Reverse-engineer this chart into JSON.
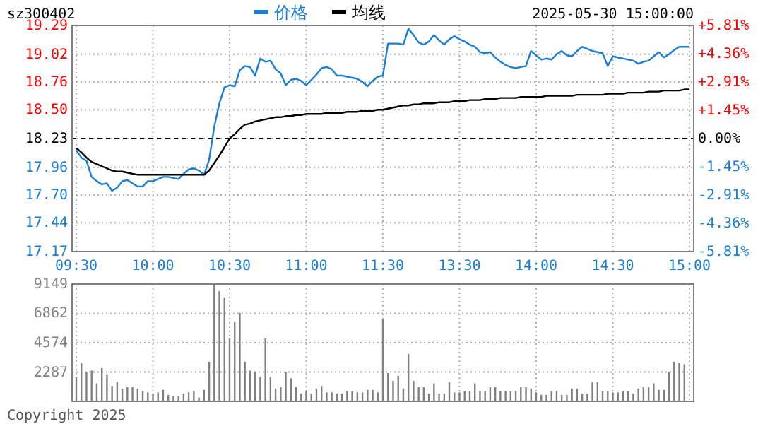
{
  "chart_data": [
    {
      "type": "line",
      "title": "sz300402",
      "subtitle": "2025-05-30 15:00:00",
      "legend": "top",
      "grid": true,
      "categories": [
        "09:30",
        null,
        null,
        null,
        null,
        null,
        null,
        null,
        null,
        null,
        null,
        null,
        null,
        null,
        null,
        "10:00",
        null,
        null,
        null,
        null,
        null,
        null,
        null,
        null,
        null,
        null,
        null,
        null,
        null,
        null,
        "10:30",
        null,
        null,
        null,
        null,
        null,
        null,
        null,
        null,
        null,
        null,
        null,
        null,
        null,
        null,
        "11:00",
        null,
        null,
        null,
        null,
        null,
        null,
        null,
        null,
        null,
        null,
        null,
        null,
        null,
        null,
        "11:30",
        null,
        null,
        null,
        null,
        null,
        null,
        null,
        null,
        null,
        null,
        null,
        null,
        null,
        null,
        "13:30",
        null,
        null,
        null,
        null,
        null,
        null,
        null,
        null,
        null,
        null,
        null,
        null,
        null,
        null,
        "14:00",
        null,
        null,
        null,
        null,
        null,
        null,
        null,
        null,
        null,
        null,
        null,
        null,
        null,
        null,
        "14:30",
        null,
        null,
        null,
        null,
        null,
        null,
        null,
        null,
        null,
        null,
        null,
        null,
        null,
        null,
        "15:00"
      ],
      "ylim": [
        17.17,
        19.29
      ],
      "yticks": [
        17.17,
        17.44,
        {
          "value": 17.7,
          "label": "17.70"
        },
        17.96,
        18.23,
        {
          "value": 18.5,
          "label": "18.50"
        },
        18.76,
        19.02,
        19.29
      ],
      "y2lim": [
        -5.81,
        5.81
      ],
      "y2ticks": [
        {
          "value": -5.81,
          "label": "-5.81%"
        },
        {
          "value": -4.36,
          "label": "-4.36%"
        },
        {
          "value": -2.91,
          "label": "-2.91%"
        },
        {
          "value": -1.45,
          "label": "-1.45%"
        },
        {
          "value": 0,
          "label": "0.00%"
        },
        {
          "value": 1.45,
          "label": "+1.45%"
        },
        {
          "value": 2.91,
          "label": "+2.91%"
        },
        {
          "value": 4.36,
          "label": "+4.36%"
        },
        {
          "value": 5.81,
          "label": "+5.81%"
        }
      ],
      "ref_lines": [
        {
          "axis": "y",
          "value": 18.23,
          "color": "#000000",
          "line_style": "dashed"
        }
      ],
      "series": [
        {
          "name": "价格",
          "color": "#1a7fd4",
          "values": [
            18.12,
            18.05,
            18.02,
            17.87,
            17.83,
            17.8,
            17.81,
            17.74,
            17.77,
            17.83,
            17.84,
            17.81,
            17.78,
            17.78,
            17.83,
            17.83,
            17.85,
            17.87,
            17.87,
            17.86,
            17.85,
            17.9,
            17.94,
            17.95,
            17.93,
            17.89,
            18.03,
            18.34,
            18.56,
            18.71,
            18.73,
            18.72,
            18.87,
            18.91,
            18.9,
            18.82,
            18.98,
            18.95,
            18.96,
            18.88,
            18.84,
            18.73,
            18.78,
            18.79,
            18.77,
            18.73,
            18.78,
            18.83,
            18.89,
            18.9,
            18.88,
            18.82,
            18.82,
            18.81,
            18.8,
            18.79,
            18.76,
            18.72,
            18.77,
            18.81,
            18.82,
            19.12,
            19.12,
            19.12,
            19.11,
            19.26,
            19.2,
            19.13,
            19.11,
            19.14,
            19.2,
            19.15,
            19.11,
            19.16,
            19.19,
            19.16,
            19.14,
            19.11,
            19.09,
            19.04,
            19.03,
            19.04,
            18.99,
            18.95,
            18.92,
            18.9,
            18.89,
            18.9,
            18.91,
            19.05,
            19.01,
            18.97,
            18.98,
            18.97,
            19.02,
            19.05,
            19.01,
            19.0,
            19.05,
            19.09,
            19.07,
            19.05,
            19.04,
            19.03,
            18.91,
            19.0,
            18.99,
            18.98,
            18.97,
            18.96,
            18.93,
            18.95,
            18.96,
            19.0,
            19.04,
            18.99,
            19.02,
            19.06,
            19.09,
            19.09,
            19.09
          ]
        },
        {
          "name": "均线",
          "color": "#000000",
          "values": [
            18.14,
            18.1,
            18.05,
            18.01,
            17.99,
            17.97,
            17.95,
            17.93,
            17.92,
            17.92,
            17.91,
            17.9,
            17.89,
            17.89,
            17.89,
            17.89,
            17.89,
            17.89,
            17.89,
            17.89,
            17.89,
            17.89,
            17.89,
            17.89,
            17.89,
            17.89,
            17.93,
            18.0,
            18.07,
            18.15,
            18.23,
            18.27,
            18.32,
            18.36,
            18.37,
            18.39,
            18.4,
            18.41,
            18.42,
            18.43,
            18.43,
            18.44,
            18.44,
            18.45,
            18.45,
            18.46,
            18.46,
            18.46,
            18.46,
            18.47,
            18.47,
            18.47,
            18.47,
            18.48,
            18.48,
            18.48,
            18.49,
            18.49,
            18.49,
            18.5,
            18.5,
            18.51,
            18.52,
            18.53,
            18.54,
            18.54,
            18.55,
            18.55,
            18.56,
            18.56,
            18.56,
            18.57,
            18.57,
            18.57,
            18.58,
            18.58,
            18.58,
            18.59,
            18.59,
            18.59,
            18.6,
            18.6,
            18.6,
            18.61,
            18.61,
            18.61,
            18.61,
            18.62,
            18.62,
            18.62,
            18.62,
            18.62,
            18.63,
            18.63,
            18.63,
            18.63,
            18.63,
            18.63,
            18.64,
            18.64,
            18.64,
            18.64,
            18.64,
            18.64,
            18.65,
            18.65,
            18.65,
            18.65,
            18.66,
            18.66,
            18.66,
            18.66,
            18.67,
            18.67,
            18.67,
            18.68,
            18.68,
            18.68,
            18.68,
            18.69,
            18.69
          ]
        }
      ]
    },
    {
      "type": "bar",
      "tick_labels": "y",
      "grid": true,
      "categories": [
        null,
        null,
        null,
        null,
        null,
        null,
        null,
        null,
        null,
        null,
        null,
        null,
        null,
        null,
        null,
        null,
        null,
        null,
        null,
        null,
        null,
        null,
        null,
        null,
        null,
        null,
        null,
        null,
        null,
        null,
        null,
        null,
        null,
        null,
        null,
        null,
        null,
        null,
        null,
        null,
        null,
        null,
        null,
        null,
        null,
        null,
        null,
        null,
        null,
        null,
        null,
        null,
        null,
        null,
        null,
        null,
        null,
        null,
        null,
        null,
        null,
        null,
        null,
        null,
        null,
        null,
        null,
        null,
        null,
        null,
        null,
        null,
        null,
        null,
        null,
        null,
        null,
        null,
        null,
        null,
        null,
        null,
        null,
        null,
        null,
        null,
        null,
        null,
        null,
        null,
        null,
        null,
        null,
        null,
        null,
        null,
        null,
        null,
        null,
        null,
        null,
        null,
        null,
        null,
        null,
        null,
        null,
        null,
        null,
        null,
        null,
        null,
        null,
        null,
        null,
        null,
        null,
        null,
        null,
        null,
        null
      ],
      "ylim": [
        0,
        9149
      ],
      "yticks": [
        2287,
        4574,
        6862,
        9149
      ],
      "color": "#808080",
      "values": [
        1900,
        3000,
        2300,
        2400,
        1400,
        2600,
        2100,
        1200,
        1500,
        1000,
        1100,
        1100,
        1000,
        800,
        700,
        600,
        700,
        900,
        500,
        400,
        400,
        600,
        700,
        800,
        300,
        900,
        3100,
        9100,
        8600,
        8100,
        4900,
        6200,
        6900,
        3100,
        2400,
        2300,
        1900,
        4900,
        1900,
        1000,
        1100,
        2300,
        1800,
        1100,
        600,
        800,
        600,
        1000,
        1200,
        700,
        700,
        600,
        600,
        800,
        800,
        700,
        700,
        900,
        900,
        700,
        6400,
        2200,
        1600,
        2000,
        1000,
        3700,
        1600,
        1100,
        1100,
        600,
        1400,
        600,
        600,
        1500,
        700,
        700,
        800,
        800,
        1400,
        800,
        800,
        1100,
        1100,
        800,
        800,
        800,
        800,
        1100,
        1100,
        1000,
        700,
        500,
        500,
        800,
        800,
        500,
        500,
        1000,
        1000,
        600,
        600,
        1500,
        1500,
        800,
        800,
        700,
        700,
        800,
        800,
        600,
        1000,
        1100,
        1100,
        1400,
        900,
        900,
        2300,
        3100,
        3000,
        2900,
        null
      ],
      "annotations": [
        "Copyright 2025"
      ]
    }
  ]
}
